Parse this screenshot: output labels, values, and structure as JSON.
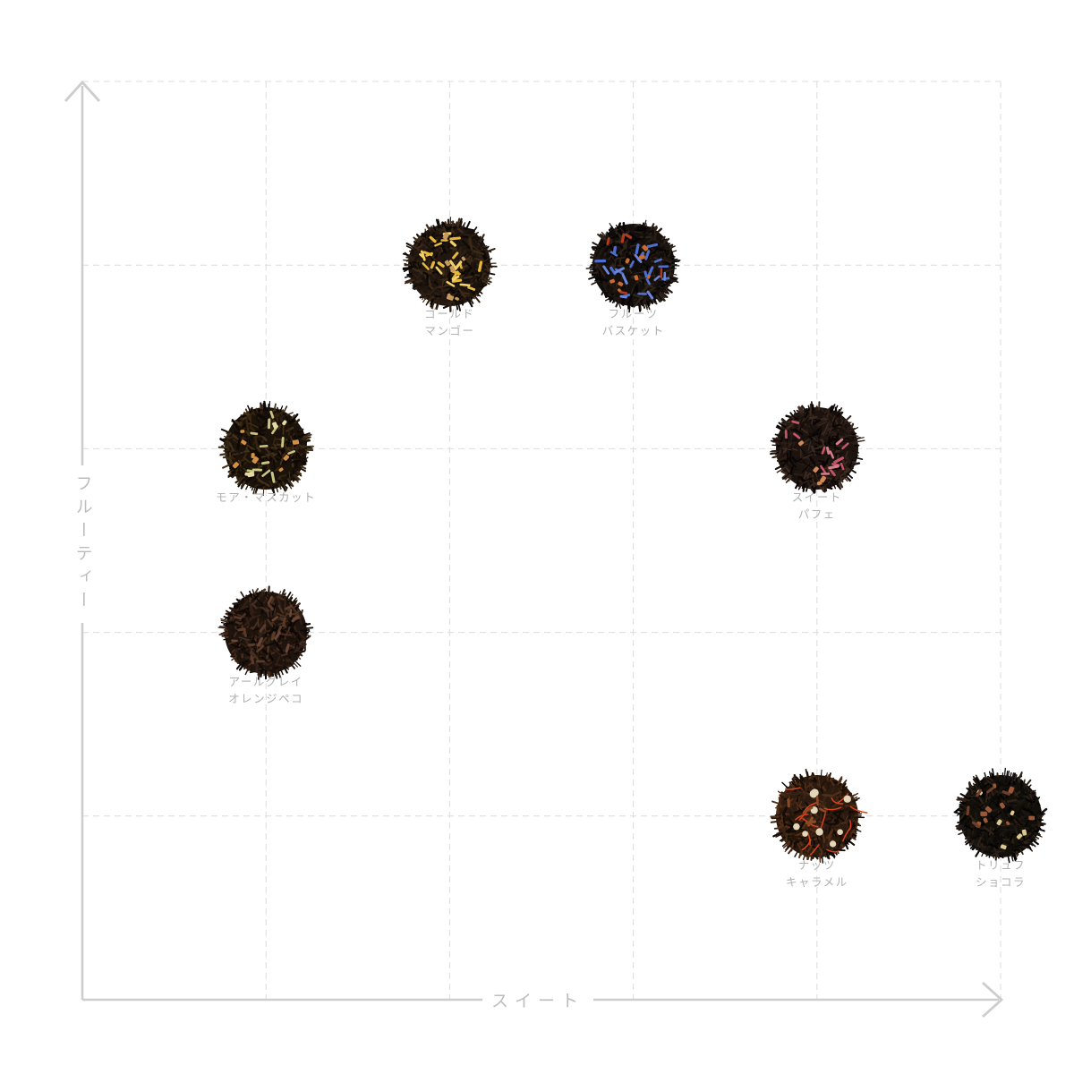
{
  "chart_data": {
    "type": "scatter",
    "title": "",
    "xlabel": "スイート",
    "ylabel": "フルーティー",
    "x_range": [
      0,
      5
    ],
    "y_range": [
      0,
      5
    ],
    "grid": "dashed, 1-unit spacing, 5x5 cells",
    "legend": "none",
    "marker": "round tea-leaf photo, ~96px diameter, label below",
    "points": [
      {
        "name": "ゴールドマンゴー",
        "label_lines": [
          "ゴールド",
          "マンゴー"
        ],
        "x": 2,
        "y": 4,
        "base_color": "#211610",
        "leaf_shades": [
          "#17100a",
          "#2e2014",
          "#3d2b18",
          "#0c0805"
        ],
        "accents": [
          {
            "color": "#e6b93c",
            "shape": "petal",
            "count": 16
          },
          {
            "color": "#f2d269",
            "shape": "petal",
            "count": 10
          },
          {
            "color": "#c79a5e",
            "shape": "chunk",
            "count": 7
          }
        ]
      },
      {
        "name": "フルーツバスケット",
        "label_lines": [
          "フルーツ",
          "バスケット"
        ],
        "x": 3,
        "y": 4,
        "base_color": "#15100c",
        "leaf_shades": [
          "#0e0b08",
          "#211813",
          "#060404",
          "#2e241a"
        ],
        "accents": [
          {
            "color": "#4f6fce",
            "shape": "petal",
            "count": 18
          },
          {
            "color": "#6c86dc",
            "shape": "petal",
            "count": 8
          },
          {
            "color": "#cd6a2d",
            "shape": "chunk",
            "count": 8
          },
          {
            "color": "#b03a20",
            "shape": "petal",
            "count": 5
          }
        ]
      },
      {
        "name": "モア・マスカット",
        "label_lines": [
          "モア・マスカット"
        ],
        "x": 1,
        "y": 3,
        "base_color": "#1b130b",
        "leaf_shades": [
          "#1c130b",
          "#33230f",
          "#0e0905",
          "#42301a"
        ],
        "accents": [
          {
            "color": "#d29045",
            "shape": "chunk",
            "count": 8
          },
          {
            "color": "#c9c482",
            "shape": "petal",
            "count": 12
          },
          {
            "color": "#e4d9a4",
            "shape": "chunk",
            "count": 4
          }
        ]
      },
      {
        "name": "スイートパフェ",
        "label_lines": [
          "スイート",
          "パフェ"
        ],
        "x": 4,
        "y": 3,
        "base_color": "#1d1410",
        "leaf_shades": [
          "#160f0b",
          "#2b1d16",
          "#3c2a1f",
          "#090605"
        ],
        "accents": [
          {
            "color": "#c4556a",
            "shape": "petal",
            "count": 10
          },
          {
            "color": "#d4808a",
            "shape": "petal",
            "count": 5
          },
          {
            "color": "#d08a55",
            "shape": "chunk",
            "count": 4
          }
        ]
      },
      {
        "name": "アールグレイオレンジペコ",
        "label_lines": [
          "アールグレイ",
          "オレンジペコ"
        ],
        "x": 1,
        "y": 2,
        "base_color": "#20150e",
        "leaf_shades": [
          "#1b110b",
          "#332016",
          "#4a3020",
          "#0d0806"
        ],
        "accents": [
          {
            "color": "#5a3a28",
            "shape": "petal",
            "count": 14
          },
          {
            "color": "#6b4632",
            "shape": "petal",
            "count": 8
          }
        ]
      },
      {
        "name": "ナッツキャラメル",
        "label_lines": [
          "ナッツ",
          "キャラメル"
        ],
        "x": 4,
        "y": 1,
        "base_color": "#2c1b10",
        "leaf_shades": [
          "#241408",
          "#3c2414",
          "#512e18",
          "#120a05"
        ],
        "accents": [
          {
            "color": "#d4431d",
            "shape": "thread",
            "count": 16
          },
          {
            "color": "#e3d5b8",
            "shape": "dot",
            "count": 9
          },
          {
            "color": "#8a4a28",
            "shape": "petal",
            "count": 6
          }
        ]
      },
      {
        "name": "トリュフショコラ",
        "label_lines": [
          "トリュフ",
          "ショコラ"
        ],
        "x": 5,
        "y": 1,
        "base_color": "#121009",
        "leaf_shades": [
          "#0c0a08",
          "#1d1713",
          "#2e2118",
          "#050403"
        ],
        "accents": [
          {
            "color": "#9a5838",
            "shape": "chunk",
            "count": 9
          },
          {
            "color": "#dcc98f",
            "shape": "chunk",
            "count": 6
          },
          {
            "color": "#6b3f2a",
            "shape": "petal",
            "count": 5
          }
        ]
      }
    ]
  },
  "style": {
    "background": "#ffffff",
    "axis_color": "#cdcdcd",
    "grid_color": "#dcdcdc",
    "point_label_color": "#b0b0b0",
    "axis_label_color": "#bdbdbd"
  }
}
